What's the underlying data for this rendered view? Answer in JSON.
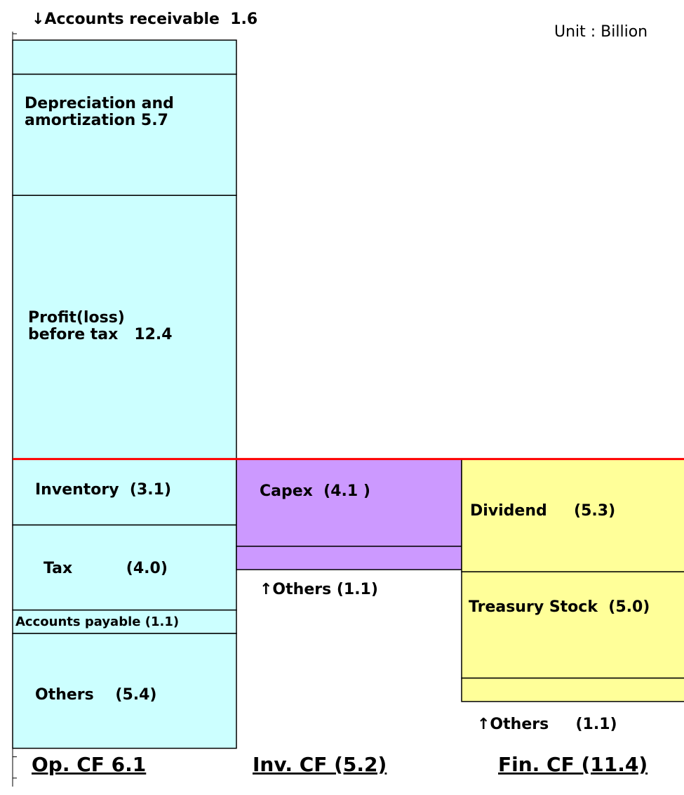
{
  "chart_data": {
    "type": "cashflow",
    "unit_label": "Unit : Billion",
    "ylim": [
      -15.4,
      20.1
    ],
    "yticks": [
      -15,
      -14,
      -13,
      -12,
      -11,
      -10,
      -9,
      -8,
      -7,
      -6,
      -5,
      -4,
      -3,
      -2,
      -1,
      0,
      1,
      2,
      3,
      4,
      5,
      6,
      7,
      8,
      9,
      10,
      11,
      12,
      13,
      14,
      15,
      16,
      17,
      18,
      19,
      20
    ],
    "zero_line_color": "#ff0000",
    "columns": [
      {
        "name": "Op. CF 6.1",
        "color": "#ccffff",
        "segments": [
          {
            "label": [
              "Profit(loss)",
              "before tax   12.4"
            ],
            "value": 12.4
          },
          {
            "label": [
              "Depreciation and",
              "amortization 5.7"
            ],
            "value": 5.7
          },
          {
            "label": [
              "↓Accounts receivable  1.6"
            ],
            "value": 1.6
          },
          {
            "label": [
              "Inventory  (3.1)"
            ],
            "value": -3.1
          },
          {
            "label": [
              "Tax          (4.0)"
            ],
            "value": -4.0
          },
          {
            "label": [
              "Accounts payable (1.1)"
            ],
            "value": -1.1
          },
          {
            "label": [
              "Others    (5.4)"
            ],
            "value": -5.4
          }
        ]
      },
      {
        "name": "Inv. CF (5.2)",
        "color": "#cc99ff",
        "segments": [
          {
            "label": [
              "Capex  (4.1 )"
            ],
            "value": -4.1
          },
          {
            "label": [
              "↑Others (1.1)"
            ],
            "value": -1.1
          }
        ]
      },
      {
        "name": "Fin. CF (11.4)",
        "color": "#ffff99",
        "segments": [
          {
            "label": [
              "Dividend     (5.3)"
            ],
            "value": -5.3
          },
          {
            "label": [
              "Treasury Stock  (5.0)"
            ],
            "value": -5.0
          },
          {
            "label": [
              "↑Others     (1.1)"
            ],
            "value": -1.1
          }
        ]
      }
    ]
  }
}
